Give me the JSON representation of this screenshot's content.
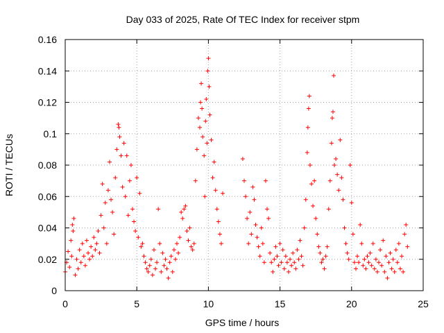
{
  "chart_data": {
    "type": "scatter",
    "title": "Day 033 of 2025, Rate Of TEC Index for receiver stpm",
    "xlabel": "GPS time / hours",
    "ylabel": "ROTI / TECUs",
    "xlim": [
      0,
      25
    ],
    "ylim": [
      0,
      0.16
    ],
    "x_ticks": [
      0,
      5,
      10,
      15,
      20,
      25
    ],
    "x_tick_labels": [
      "0",
      "5",
      "10",
      "15",
      "20",
      "25"
    ],
    "y_ticks": [
      0,
      0.02,
      0.04,
      0.06,
      0.08,
      0.1,
      0.12,
      0.14,
      0.16
    ],
    "y_tick_labels": [
      "0",
      "0.02",
      "0.04",
      "0.06",
      "0.08",
      "0.1",
      "0.12",
      "0.14",
      "0.16"
    ],
    "grid": true,
    "marker": "+",
    "marker_color": "#ff0000",
    "series": [
      {
        "name": "ROTI",
        "points": [
          [
            0.0,
            0.012
          ],
          [
            0.1,
            0.018
          ],
          [
            0.2,
            0.025
          ],
          [
            0.3,
            0.015
          ],
          [
            0.4,
            0.032
          ],
          [
            0.45,
            0.022
          ],
          [
            0.5,
            0.042
          ],
          [
            0.55,
            0.038
          ],
          [
            0.6,
            0.046
          ],
          [
            0.7,
            0.01
          ],
          [
            0.8,
            0.02
          ],
          [
            0.9,
            0.014
          ],
          [
            1.0,
            0.026
          ],
          [
            1.1,
            0.018
          ],
          [
            1.2,
            0.03
          ],
          [
            1.3,
            0.022
          ],
          [
            1.4,
            0.016
          ],
          [
            1.5,
            0.032
          ],
          [
            1.6,
            0.024
          ],
          [
            1.7,
            0.02
          ],
          [
            1.8,
            0.028
          ],
          [
            1.9,
            0.022
          ],
          [
            2.0,
            0.034
          ],
          [
            2.1,
            0.026
          ],
          [
            2.2,
            0.03
          ],
          [
            2.3,
            0.038
          ],
          [
            2.4,
            0.024
          ],
          [
            2.5,
            0.048
          ],
          [
            2.6,
            0.068
          ],
          [
            2.7,
            0.04
          ],
          [
            2.8,
            0.056
          ],
          [
            2.9,
            0.03
          ],
          [
            3.0,
            0.064
          ],
          [
            3.1,
            0.082
          ],
          [
            3.2,
            0.058
          ],
          [
            3.3,
            0.05
          ],
          [
            3.4,
            0.036
          ],
          [
            3.5,
            0.072
          ],
          [
            3.6,
            0.09
          ],
          [
            3.7,
            0.106
          ],
          [
            3.75,
            0.104
          ],
          [
            3.8,
            0.098
          ],
          [
            3.9,
            0.086
          ],
          [
            4.0,
            0.066
          ],
          [
            4.1,
            0.094
          ],
          [
            4.2,
            0.06
          ],
          [
            4.3,
            0.086
          ],
          [
            4.4,
            0.048
          ],
          [
            4.5,
            0.07
          ],
          [
            4.6,
            0.08
          ],
          [
            4.7,
            0.052
          ],
          [
            4.8,
            0.044
          ],
          [
            4.9,
            0.038
          ],
          [
            5.0,
            0.072
          ],
          [
            5.1,
            0.034
          ],
          [
            5.2,
            0.062
          ],
          [
            5.3,
            0.028
          ],
          [
            5.4,
            0.03
          ],
          [
            5.5,
            0.022
          ],
          [
            5.6,
            0.018
          ],
          [
            5.7,
            0.014
          ],
          [
            5.8,
            0.012
          ],
          [
            5.9,
            0.016
          ],
          [
            6.0,
            0.02
          ],
          [
            6.1,
            0.01
          ],
          [
            6.2,
            0.026
          ],
          [
            6.3,
            0.014
          ],
          [
            6.4,
            0.018
          ],
          [
            6.5,
            0.052
          ],
          [
            6.6,
            0.03
          ],
          [
            6.7,
            0.012
          ],
          [
            6.8,
            0.024
          ],
          [
            6.9,
            0.016
          ],
          [
            7.0,
            0.02
          ],
          [
            7.1,
            0.014
          ],
          [
            7.2,
            0.008
          ],
          [
            7.3,
            0.018
          ],
          [
            7.4,
            0.022
          ],
          [
            7.5,
            0.012
          ],
          [
            7.6,
            0.026
          ],
          [
            7.7,
            0.02
          ],
          [
            7.8,
            0.03
          ],
          [
            7.9,
            0.024
          ],
          [
            8.0,
            0.034
          ],
          [
            8.1,
            0.05
          ],
          [
            8.2,
            0.046
          ],
          [
            8.3,
            0.052
          ],
          [
            8.4,
            0.054
          ],
          [
            8.5,
            0.038
          ],
          [
            8.6,
            0.032
          ],
          [
            8.7,
            0.04
          ],
          [
            8.8,
            0.028
          ],
          [
            8.9,
            0.026
          ],
          [
            9.0,
            0.03
          ],
          [
            9.1,
            0.07
          ],
          [
            9.2,
            0.09
          ],
          [
            9.3,
            0.11
          ],
          [
            9.4,
            0.104
          ],
          [
            9.45,
            0.12
          ],
          [
            9.5,
            0.132
          ],
          [
            9.55,
            0.116
          ],
          [
            9.6,
            0.098
          ],
          [
            9.7,
            0.086
          ],
          [
            9.75,
            0.06
          ],
          [
            9.8,
            0.108
          ],
          [
            9.85,
            0.122
          ],
          [
            9.9,
            0.094
          ],
          [
            9.95,
            0.14
          ],
          [
            10.0,
            0.148
          ],
          [
            10.05,
            0.13
          ],
          [
            10.1,
            0.112
          ],
          [
            10.2,
            0.096
          ],
          [
            10.3,
            0.072
          ],
          [
            10.4,
            0.082
          ],
          [
            10.5,
            0.064
          ],
          [
            10.6,
            0.052
          ],
          [
            10.7,
            0.044
          ],
          [
            10.8,
            0.036
          ],
          [
            10.9,
            0.03
          ],
          [
            11.0,
            0.062
          ],
          [
            12.4,
            0.084
          ],
          [
            12.5,
            0.07
          ],
          [
            12.6,
            0.06
          ],
          [
            12.7,
            0.046
          ],
          [
            12.8,
            0.03
          ],
          [
            12.9,
            0.05
          ],
          [
            13.0,
            0.036
          ],
          [
            13.1,
            0.066
          ],
          [
            13.2,
            0.058
          ],
          [
            13.3,
            0.042
          ],
          [
            13.4,
            0.034
          ],
          [
            13.5,
            0.028
          ],
          [
            13.6,
            0.022
          ],
          [
            13.7,
            0.04
          ],
          [
            13.8,
            0.03
          ],
          [
            13.9,
            0.018
          ],
          [
            14.0,
            0.07
          ],
          [
            14.1,
            0.052
          ],
          [
            14.2,
            0.046
          ],
          [
            14.3,
            0.024
          ],
          [
            14.4,
            0.018
          ],
          [
            14.5,
            0.012
          ],
          [
            14.6,
            0.02
          ],
          [
            14.7,
            0.028
          ],
          [
            14.8,
            0.022
          ],
          [
            14.9,
            0.016
          ],
          [
            15.0,
            0.03
          ],
          [
            15.1,
            0.018
          ],
          [
            15.2,
            0.026
          ],
          [
            15.3,
            0.014
          ],
          [
            15.4,
            0.022
          ],
          [
            15.5,
            0.018
          ],
          [
            15.6,
            0.012
          ],
          [
            15.7,
            0.02
          ],
          [
            15.8,
            0.016
          ],
          [
            15.9,
            0.024
          ],
          [
            16.0,
            0.018
          ],
          [
            16.1,
            0.014
          ],
          [
            16.2,
            0.026
          ],
          [
            16.3,
            0.02
          ],
          [
            16.4,
            0.032
          ],
          [
            16.5,
            0.022
          ],
          [
            16.6,
            0.016
          ],
          [
            16.7,
            0.04
          ],
          [
            16.8,
            0.058
          ],
          [
            16.9,
            0.088
          ],
          [
            16.95,
            0.104
          ],
          [
            17.0,
            0.116
          ],
          [
            17.05,
            0.124
          ],
          [
            17.1,
            0.08
          ],
          [
            17.2,
            0.068
          ],
          [
            17.3,
            0.054
          ],
          [
            17.4,
            0.07
          ],
          [
            17.5,
            0.046
          ],
          [
            17.6,
            0.036
          ],
          [
            17.7,
            0.028
          ],
          [
            17.8,
            0.024
          ],
          [
            17.9,
            0.018
          ],
          [
            18.0,
            0.02
          ],
          [
            18.1,
            0.014
          ],
          [
            18.2,
            0.022
          ],
          [
            18.3,
            0.028
          ],
          [
            18.4,
            0.052
          ],
          [
            18.5,
            0.07
          ],
          [
            18.6,
            0.094
          ],
          [
            18.65,
            0.11
          ],
          [
            18.7,
            0.114
          ],
          [
            18.75,
            0.137
          ],
          [
            18.8,
            0.08
          ],
          [
            18.9,
            0.084
          ],
          [
            19.0,
            0.074
          ],
          [
            19.1,
            0.064
          ],
          [
            19.2,
            0.096
          ],
          [
            19.3,
            0.072
          ],
          [
            19.4,
            0.058
          ],
          [
            19.5,
            0.04
          ],
          [
            19.6,
            0.03
          ],
          [
            19.7,
            0.024
          ],
          [
            19.8,
            0.02
          ],
          [
            19.9,
            0.08
          ],
          [
            20.0,
            0.056
          ],
          [
            20.1,
            0.036
          ],
          [
            20.2,
            0.018
          ],
          [
            20.3,
            0.014
          ],
          [
            20.4,
            0.022
          ],
          [
            20.5,
            0.018
          ],
          [
            20.6,
            0.042
          ],
          [
            20.7,
            0.03
          ],
          [
            20.8,
            0.016
          ],
          [
            20.9,
            0.02
          ],
          [
            21.0,
            0.014
          ],
          [
            21.1,
            0.022
          ],
          [
            21.2,
            0.018
          ],
          [
            21.3,
            0.024
          ],
          [
            21.4,
            0.016
          ],
          [
            21.5,
            0.03
          ],
          [
            21.6,
            0.014
          ],
          [
            21.7,
            0.02
          ],
          [
            21.8,
            0.012
          ],
          [
            21.9,
            0.018
          ],
          [
            22.0,
            0.026
          ],
          [
            22.1,
            0.016
          ],
          [
            22.2,
            0.032
          ],
          [
            22.3,
            0.012
          ],
          [
            22.4,
            0.022
          ],
          [
            22.5,
            0.008
          ],
          [
            22.6,
            0.018
          ],
          [
            22.7,
            0.024
          ],
          [
            22.8,
            0.014
          ],
          [
            22.9,
            0.02
          ],
          [
            23.0,
            0.012
          ],
          [
            23.1,
            0.026
          ],
          [
            23.2,
            0.018
          ],
          [
            23.3,
            0.03
          ],
          [
            23.4,
            0.014
          ],
          [
            23.5,
            0.022
          ],
          [
            23.6,
            0.012
          ],
          [
            23.7,
            0.036
          ],
          [
            23.8,
            0.042
          ],
          [
            23.9,
            0.028
          ]
        ]
      }
    ]
  }
}
